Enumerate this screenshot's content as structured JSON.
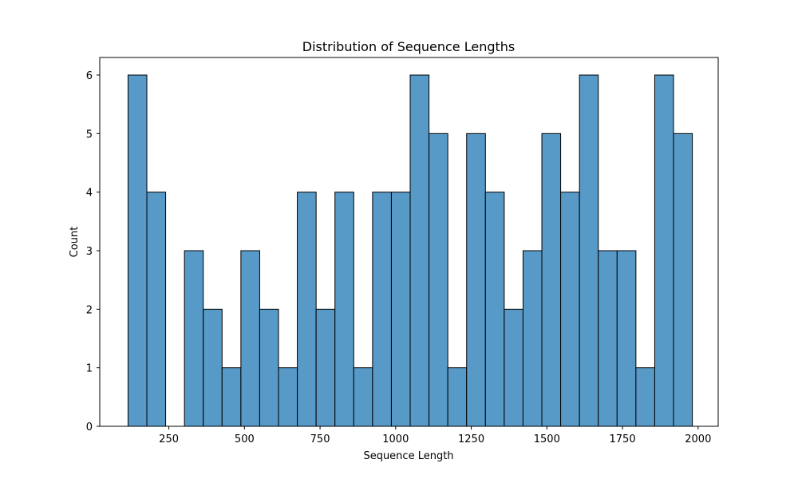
{
  "chart_data": {
    "type": "bar",
    "subtype": "histogram",
    "title": "Distribution of Sequence Lengths",
    "xlabel": "Sequence Length",
    "ylabel": "Count",
    "xlim": [
      21.5,
      2066.5
    ],
    "ylim": [
      0,
      6.3
    ],
    "xticks": [
      250,
      500,
      750,
      1000,
      1250,
      1500,
      1750,
      2000
    ],
    "yticks": [
      0,
      1,
      2,
      3,
      4,
      5,
      6
    ],
    "grid": false,
    "bin_start": 115,
    "bin_width": 62.2,
    "counts": [
      6,
      4,
      0,
      3,
      2,
      1,
      3,
      2,
      1,
      4,
      2,
      4,
      1,
      4,
      4,
      6,
      5,
      1,
      5,
      4,
      2,
      3,
      5,
      4,
      6,
      3,
      3,
      1,
      6,
      5
    ],
    "bar_color": "#5799c7",
    "edge_color": "#000000"
  }
}
